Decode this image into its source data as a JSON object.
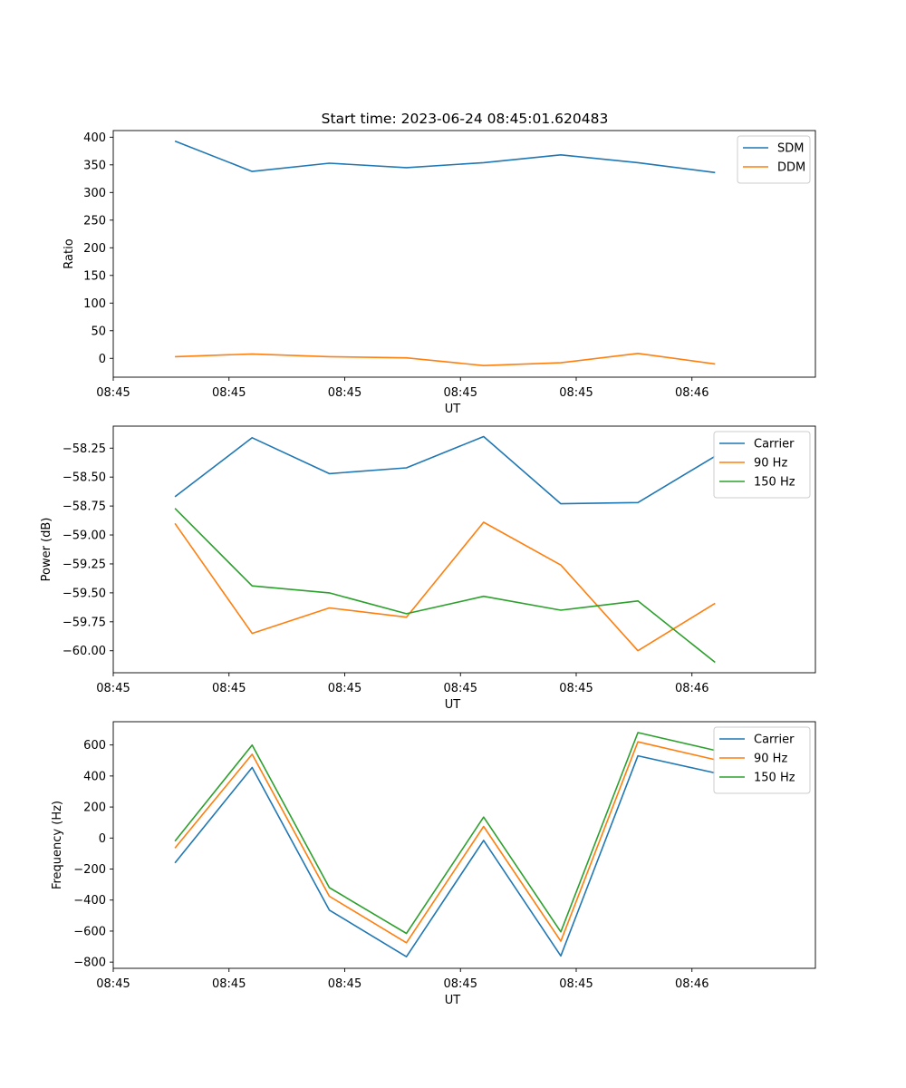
{
  "figure": {
    "title": "Start time: 2023-06-24 08:45:01.620483"
  },
  "chart_data": [
    {
      "type": "line",
      "xlabel": "UT",
      "ylabel": "Ratio",
      "x": [
        1,
        2,
        3,
        4,
        5,
        6,
        7,
        8
      ],
      "xlim": [
        0.2,
        9.3
      ],
      "xticks": [
        {
          "value": 0.2,
          "label": "08:45"
        },
        {
          "value": 1.7,
          "label": "08:45"
        },
        {
          "value": 3.2,
          "label": "08:45"
        },
        {
          "value": 4.7,
          "label": "08:45"
        },
        {
          "value": 6.2,
          "label": "08:45"
        },
        {
          "value": 7.7,
          "label": "08:46"
        }
      ],
      "ylim": [
        -34,
        412
      ],
      "yticks": [
        0,
        50,
        100,
        150,
        200,
        250,
        300,
        350,
        400
      ],
      "legend": "top-right",
      "series": [
        {
          "name": "SDM",
          "color": "#1f77b4",
          "values": [
            393,
            338,
            353,
            345,
            354,
            368,
            354,
            336
          ]
        },
        {
          "name": "DDM",
          "color": "#ff7f0e",
          "values": [
            3,
            8,
            3,
            1,
            -13,
            -8,
            9,
            -10
          ]
        }
      ]
    },
    {
      "type": "line",
      "xlabel": "UT",
      "ylabel": "Power (dB)",
      "x": [
        1,
        2,
        3,
        4,
        5,
        6,
        7,
        8
      ],
      "xlim": [
        0.2,
        9.3
      ],
      "xticks": [
        {
          "value": 0.2,
          "label": "08:45"
        },
        {
          "value": 1.7,
          "label": "08:45"
        },
        {
          "value": 3.2,
          "label": "08:45"
        },
        {
          "value": 4.7,
          "label": "08:45"
        },
        {
          "value": 6.2,
          "label": "08:45"
        },
        {
          "value": 7.7,
          "label": "08:46"
        }
      ],
      "ylim": [
        -60.19,
        -58.06
      ],
      "yticks": [
        -60.0,
        -59.75,
        -59.5,
        -59.25,
        -59.0,
        -58.75,
        -58.5,
        -58.25
      ],
      "yticklabels": [
        "−60.00",
        "−59.75",
        "−59.50",
        "−59.25",
        "−59.00",
        "−58.75",
        "−58.50",
        "−58.25"
      ],
      "legend": "top-right",
      "series": [
        {
          "name": "Carrier",
          "color": "#1f77b4",
          "values": [
            -58.67,
            -58.16,
            -58.47,
            -58.42,
            -58.15,
            -58.73,
            -58.72,
            -58.32
          ]
        },
        {
          "name": "90 Hz",
          "color": "#ff7f0e",
          "values": [
            -58.9,
            -59.85,
            -59.63,
            -59.71,
            -58.89,
            -59.26,
            -60.0,
            -59.59
          ]
        },
        {
          "name": "150 Hz",
          "color": "#2ca02c",
          "values": [
            -58.77,
            -59.44,
            -59.5,
            -59.68,
            -59.53,
            -59.65,
            -59.57,
            -60.1
          ]
        }
      ]
    },
    {
      "type": "line",
      "xlabel": "UT",
      "ylabel": "Frequency (Hz)",
      "x": [
        1,
        2,
        3,
        4,
        5,
        6,
        7,
        8
      ],
      "xlim": [
        0.2,
        9.3
      ],
      "xticks": [
        {
          "value": 0.2,
          "label": "08:45"
        },
        {
          "value": 1.7,
          "label": "08:45"
        },
        {
          "value": 3.2,
          "label": "08:45"
        },
        {
          "value": 4.7,
          "label": "08:45"
        },
        {
          "value": 6.2,
          "label": "08:45"
        },
        {
          "value": 7.7,
          "label": "08:46"
        }
      ],
      "ylim": [
        -840,
        750
      ],
      "yticks": [
        -800,
        -600,
        -400,
        -200,
        0,
        200,
        400,
        600
      ],
      "yticklabels": [
        "−800",
        "−600",
        "−400",
        "−200",
        "0",
        "200",
        "400",
        "600"
      ],
      "legend": "top-right",
      "series": [
        {
          "name": "Carrier",
          "color": "#1f77b4",
          "values": [
            -160,
            455,
            -465,
            -765,
            -15,
            -760,
            530,
            420
          ]
        },
        {
          "name": "90 Hz",
          "color": "#ff7f0e",
          "values": [
            -65,
            540,
            -375,
            -675,
            75,
            -665,
            620,
            505
          ]
        },
        {
          "name": "150 Hz",
          "color": "#2ca02c",
          "values": [
            -20,
            600,
            -320,
            -615,
            135,
            -605,
            680,
            565
          ]
        }
      ]
    }
  ]
}
